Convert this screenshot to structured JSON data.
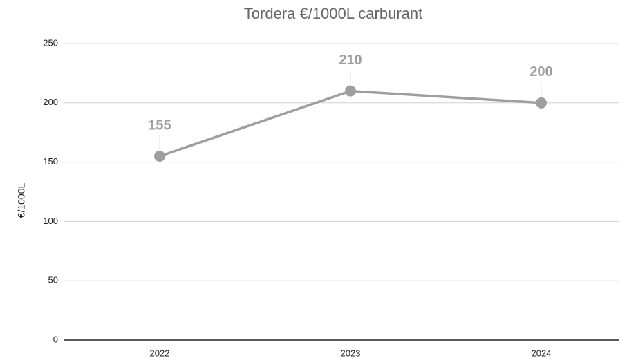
{
  "chart_data": {
    "type": "line",
    "title": "Tordera €/1000L carburant",
    "y_label": "€/1000L",
    "categories": [
      "2022",
      "2023",
      "2024"
    ],
    "values": [
      155,
      210,
      200
    ],
    "color": "#9e9e9e",
    "ylim": [
      0,
      250
    ],
    "yticks": [
      0,
      50,
      100,
      150,
      200,
      250
    ],
    "grid": true
  }
}
